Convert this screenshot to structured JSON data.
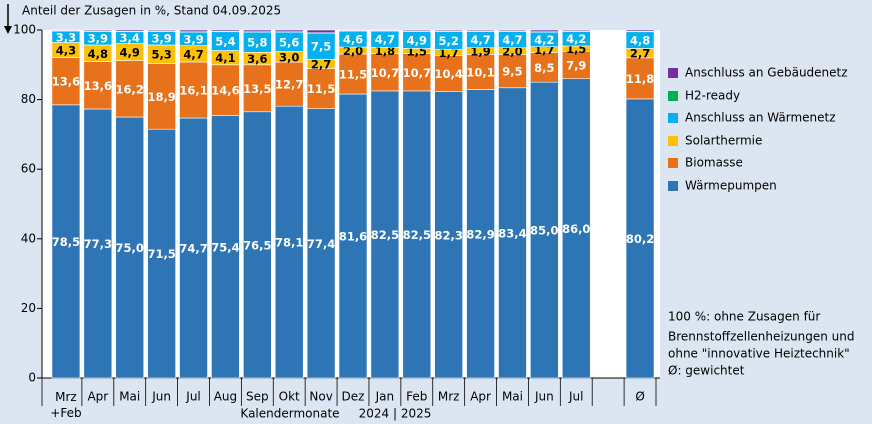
{
  "chart_data": {
    "type": "stacked-bar",
    "y_title": "Anteil der Zusagen in %, Stand 04.09.2025",
    "x_title": "Kalendermonate",
    "x_subtitle": "2024 | 2025",
    "notes": [
      "100 %: ohne Zusagen für",
      "Brennstoffzellenheizungen und",
      "ohne \"innovative Heiztechnik\"",
      "Ø: gewichtet"
    ],
    "categories": [
      "Mrz\n+Feb",
      "Apr",
      "Mai",
      "Jun",
      "Jul",
      "Aug",
      "Sep",
      "Okt",
      "Nov",
      "Dez",
      "Jan",
      "Feb",
      "Mrz",
      "Apr",
      "Mai",
      "Jun",
      "Jul",
      null,
      "Ø"
    ],
    "ylim": [
      0,
      100
    ],
    "yticks": [
      0,
      20,
      40,
      60,
      80,
      100
    ],
    "series": [
      {
        "name": "Wärmepumpen",
        "color": "#2e75b6",
        "label_color": "#ffffff",
        "values": [
          78.5,
          77.3,
          75.0,
          71.5,
          74.7,
          75.4,
          76.5,
          78.1,
          77.4,
          81.6,
          82.5,
          82.5,
          82.3,
          82.9,
          83.4,
          85.0,
          86.0,
          null,
          80.2
        ],
        "value_labels": [
          "78,5",
          "77,3",
          "75,0",
          "71,5",
          "74,7",
          "75,4",
          "76,5",
          "78,1",
          "77,4",
          "81,6",
          "82,5",
          "82,5",
          "82,3",
          "82,9",
          "83,4",
          "85,0",
          "86,0",
          null,
          "80,2"
        ]
      },
      {
        "name": "Biomasse",
        "color": "#e8711b",
        "label_color": "#ffffff",
        "values": [
          13.6,
          13.6,
          16.2,
          18.9,
          16.1,
          14.6,
          13.5,
          12.7,
          11.5,
          11.5,
          10.7,
          10.7,
          10.4,
          10.1,
          9.5,
          8.5,
          7.9,
          null,
          11.8
        ],
        "value_labels": [
          "13,6",
          "13,6",
          "16,2",
          "18,9",
          "16,1",
          "14,6",
          "13,5",
          "12,7",
          "11,5",
          "11,5",
          "10,7",
          "10,7",
          "10,4",
          "10,1",
          "9,5",
          "8,5",
          "7,9",
          null,
          "11,8"
        ]
      },
      {
        "name": "Solarthermie",
        "color": "#ffc000",
        "label_color": "#000000",
        "values": [
          4.3,
          4.8,
          4.9,
          5.3,
          4.7,
          4.1,
          3.6,
          3.0,
          2.7,
          2.0,
          1.8,
          1.5,
          1.7,
          1.9,
          2.0,
          1.7,
          1.5,
          null,
          2.7
        ],
        "value_labels": [
          "4,3",
          "4,8",
          "4,9",
          "5,3",
          "4,7",
          "4,1",
          "3,6",
          "3,0",
          "2,7",
          "2,0",
          "1,8",
          "1,5",
          "1,7",
          "1,9",
          "2,0",
          "1,7",
          "1,5",
          null,
          "2,7"
        ]
      },
      {
        "name": "Anschluss an Wärmenetz",
        "color": "#00b0f0",
        "label_color": "#ffffff",
        "values": [
          3.3,
          3.9,
          3.4,
          3.9,
          3.9,
          5.4,
          5.8,
          5.6,
          7.5,
          4.6,
          4.7,
          4.9,
          5.2,
          4.7,
          4.7,
          4.2,
          4.2,
          null,
          4.8
        ],
        "value_labels": [
          "3,3",
          "3,9",
          "3,4",
          "3,9",
          "3,9",
          "5,4",
          "5,8",
          "5,6",
          "7,5",
          "4,6",
          "4,7",
          "4,9",
          "5,2",
          "4,7",
          "4,7",
          "4,2",
          "4,2",
          null,
          "4,8"
        ]
      },
      {
        "name": "H2-ready",
        "color": "#00b050",
        "values": [
          0.1,
          0.1,
          0.1,
          0.1,
          0.1,
          0.1,
          0.1,
          0.1,
          0.1,
          0.1,
          0.1,
          0.1,
          0.1,
          0.1,
          0.1,
          0.1,
          0.1,
          null,
          0.1
        ]
      },
      {
        "name": "Anschluss an Gebäudenetz",
        "color": "#7030a0",
        "values": [
          0.2,
          0.3,
          0.4,
          0.3,
          0.5,
          0.4,
          0.5,
          0.5,
          0.8,
          0.2,
          0.2,
          0.3,
          0.3,
          0.3,
          0.3,
          0.5,
          0.3,
          null,
          0.4
        ]
      }
    ]
  }
}
